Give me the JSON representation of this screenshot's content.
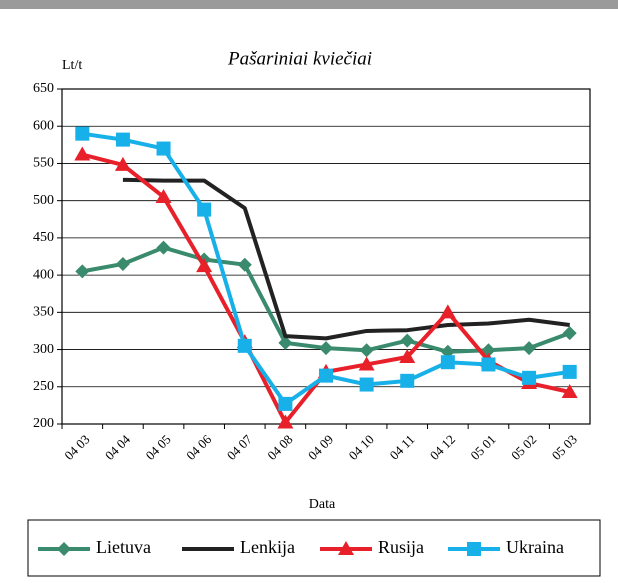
{
  "chart_data": {
    "type": "line",
    "title": "Pašariniai kviečiai",
    "y_label": "Lt/t",
    "x_label": "Data",
    "categories": [
      "04 03",
      "04 04",
      "04 05",
      "04 06",
      "04 07",
      "04 08",
      "04 09",
      "04 10",
      "04 11",
      "04 12",
      "05 01",
      "05 02",
      "05 03"
    ],
    "series": [
      {
        "name": "Lietuva",
        "color": "#3a8a6e",
        "marker": "diamond",
        "values": [
          405,
          415,
          437,
          421,
          414,
          309,
          302,
          299,
          312,
          297,
          299,
          302,
          322
        ]
      },
      {
        "name": "Lenkija",
        "color": "#222222",
        "marker": "none",
        "values": [
          null,
          528,
          527,
          527,
          490,
          318,
          315,
          325,
          326,
          333,
          335,
          340,
          333
        ]
      },
      {
        "name": "Rusija",
        "color": "#e8202a",
        "marker": "triangle",
        "values": [
          562,
          548,
          505,
          412,
          310,
          202,
          270,
          280,
          290,
          350,
          285,
          255,
          243
        ]
      },
      {
        "name": "Ukraina",
        "color": "#18b0e8",
        "marker": "square",
        "values": [
          590,
          582,
          570,
          488,
          305,
          227,
          265,
          253,
          258,
          283,
          280,
          262,
          270
        ]
      }
    ],
    "ylim": [
      200,
      650
    ],
    "yticks": [
      200,
      250,
      300,
      350,
      400,
      450,
      500,
      550,
      600,
      650
    ],
    "grid": true,
    "legend": "bottom"
  }
}
